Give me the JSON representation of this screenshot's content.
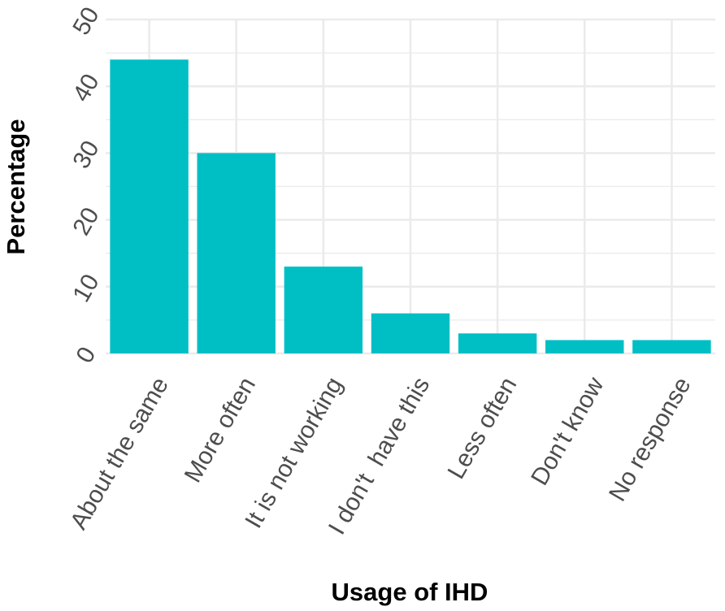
{
  "chart_data": {
    "type": "bar",
    "title": "",
    "xlabel": "Usage of IHD",
    "ylabel": "Percentage",
    "categories": [
      "About the same",
      "More often",
      "It is not working",
      "I don't  have this",
      "Less often",
      "Don't know",
      "No response"
    ],
    "values": [
      44,
      30,
      13,
      6,
      3,
      2,
      2
    ],
    "ylim": [
      0,
      50
    ],
    "yticks": [
      "0",
      "10",
      "20",
      "30",
      "40",
      "50"
    ],
    "grid": true,
    "legend": "none",
    "colors": {
      "bar": "#00BFC4",
      "grid": "#ebebeb",
      "tick_text": "#4d4d4d",
      "axis_title": "#000000",
      "background": "#ffffff"
    }
  }
}
